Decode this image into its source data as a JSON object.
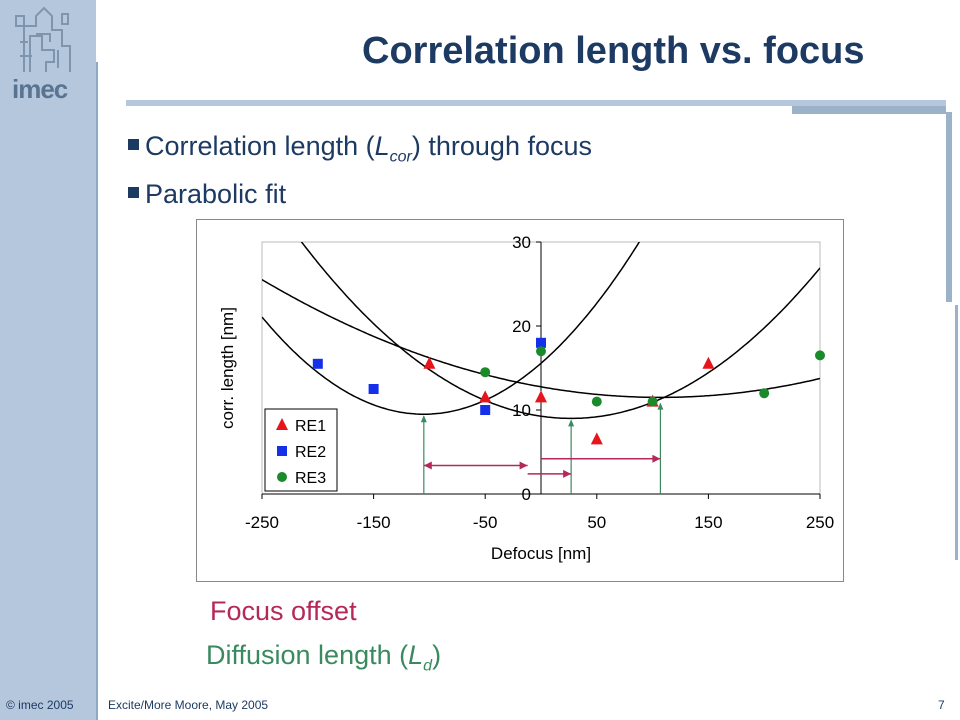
{
  "logo": {
    "text": "imec"
  },
  "title": "Correlation length vs. focus",
  "bullets": {
    "b1_pre": "Correlation length (",
    "b1_var": "L",
    "b1_sub": "cor",
    "b1_post": ") through focus",
    "b2": "Parabolic fit"
  },
  "annotations": {
    "focus_offset": "Focus offset",
    "diffusion_pre": "Diffusion length (",
    "diffusion_var": "L",
    "diffusion_sub": "d",
    "diffusion_post": ")"
  },
  "footer": {
    "left": "© imec 2005",
    "center": "Excite/More Moore, May 2005",
    "page": "7"
  },
  "colors": {
    "RE1": "#e8141b",
    "RE2": "#1430e8",
    "RE3": "#1a8a2a",
    "arrow_pink": "#b5285a",
    "arrow_green": "#3a8a60",
    "navy": "#1d3a63"
  },
  "chart_data": {
    "type": "scatter",
    "xlabel": "Defocus [nm]",
    "ylabel": "corr. length [nm]",
    "xlim": [
      -250,
      250
    ],
    "ylim": [
      0,
      30
    ],
    "xticks": [
      -250,
      -150,
      -50,
      50,
      150,
      250
    ],
    "yticks": [
      0,
      10,
      20,
      30
    ],
    "grid": false,
    "legend": "bottom-left",
    "series": [
      {
        "name": "RE1",
        "marker": "triangle",
        "x": [
          -100,
          -50,
          0,
          50,
          100,
          150
        ],
        "y": [
          15.5,
          11.5,
          11.5,
          6.5,
          11,
          15.5
        ]
      },
      {
        "name": "RE2",
        "marker": "square",
        "x": [
          -200,
          -150,
          -50,
          0
        ],
        "y": [
          15.5,
          12.5,
          10,
          18
        ]
      },
      {
        "name": "RE3",
        "marker": "circle",
        "x": [
          -50,
          0,
          50,
          100,
          200,
          250
        ],
        "y": [
          14.5,
          17,
          11,
          11,
          12,
          16.5
        ]
      }
    ],
    "fits": [
      {
        "name": "RE2 fit",
        "vertex_x": -105,
        "vertex_y": 9.5,
        "a": 0.00055
      },
      {
        "name": "RE1 fit",
        "vertex_x": 27,
        "vertex_y": 9.0,
        "a": 0.00036
      },
      {
        "name": "RE3 fit",
        "vertex_x": 107,
        "vertex_y": 11.5,
        "a": 0.00011
      }
    ]
  }
}
